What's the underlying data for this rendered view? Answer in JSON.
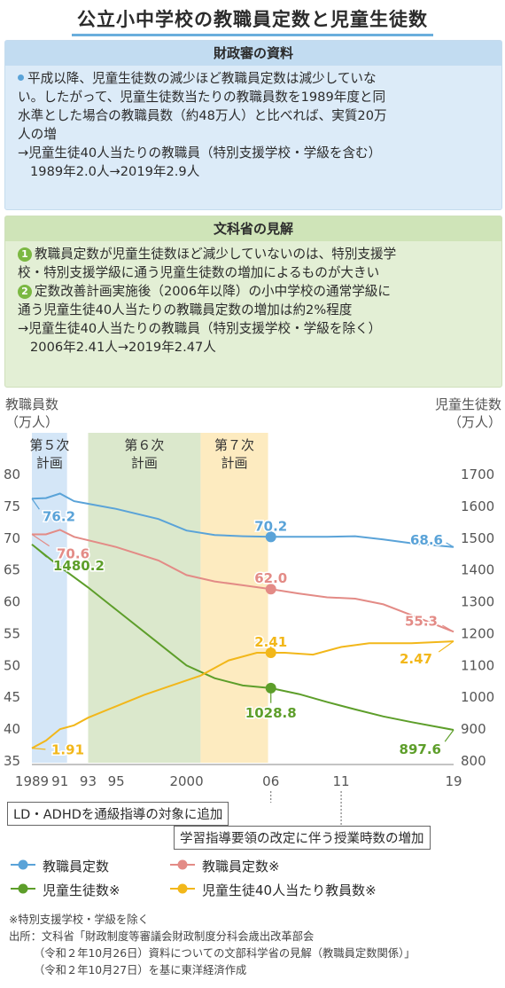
{
  "title": "公立小中学校の教職員定数と児童生徒数",
  "mof_box": {
    "heading": "財政審の資料",
    "line1": "平成以降、児童生徒数の減少ほど教職員定数は減少していな",
    "line2": "い。したがって、児童生徒数当たりの教職員数を1989年度と同",
    "line3": "水準とした場合の教職員数（約48万人）と比べれば、実質20万",
    "line4": "人の増",
    "arrow_line1": "→児童生徒40人当たりの教職員（特別支援学校・学級を含む）",
    "arrow_line2": "1989年2.0人→2019年2.9人"
  },
  "mext_box": {
    "heading": "文科省の見解",
    "item1_num": "1",
    "item1_line1": "教職員定数が児童生徒数ほど減少していないのは、特別支援学",
    "item1_line2": "校・特別支援学級に通う児童生徒数の増加によるものが大きい",
    "item2_num": "2",
    "item2_line1": "定数改善計画実施後（2006年以降）の小中学校の通常学級に",
    "item2_line2": "通う児童生徒40人当たりの教職員定数の増加は約2%程度",
    "arrow_line1": "→児童生徒40人当たりの教職員（特別支援学校・学級を除く）",
    "arrow_line2": "2006年2.41人→2019年2.47人"
  },
  "chart_data": {
    "type": "line",
    "left_axis_label_1": "教職員数",
    "left_axis_label_2": "（万人）",
    "right_axis_label_1": "児童生徒数",
    "right_axis_label_2": "（万人）",
    "x_ticks": [
      "1989",
      "91",
      "93",
      "95",
      "2000",
      "06",
      "11",
      "19"
    ],
    "x_tick_values": [
      1989,
      1991,
      1993,
      1995,
      2000,
      2006,
      2011,
      2019
    ],
    "xlim": [
      1989,
      2019
    ],
    "left_ylim": [
      35,
      80
    ],
    "left_ticks": [
      "80",
      "75",
      "70",
      "65",
      "60",
      "55",
      "50",
      "45",
      "40",
      "35"
    ],
    "right_ylim": [
      800,
      1700
    ],
    "right_ticks": [
      "1700",
      "1600",
      "1500",
      "1400",
      "1300",
      "1200",
      "1100",
      "1000",
      "900",
      "800"
    ],
    "periods": [
      {
        "label_1": "第５次",
        "label_2": "計画",
        "start": 1989,
        "end": 1991.5,
        "color": "#d4e6f7"
      },
      {
        "label_1": "第６次",
        "label_2": "計画",
        "start": 1993,
        "end": 2001,
        "color": "#dbe8cc"
      },
      {
        "label_1": "第７次",
        "label_2": "計画",
        "start": 2001,
        "end": 2005.8,
        "color": "#fdebc0"
      }
    ],
    "series": [
      {
        "name": "教職員定数",
        "axis": "left",
        "color": "#5aa3d8",
        "x": [
          1989,
          1990,
          1991,
          1992,
          1993,
          1995,
          1998,
          2000,
          2002,
          2004,
          2006,
          2008,
          2010,
          2012,
          2014,
          2016,
          2019
        ],
        "values": [
          76.2,
          76.3,
          77.0,
          75.8,
          75.4,
          74.6,
          73.0,
          71.2,
          70.5,
          70.3,
          70.2,
          70.2,
          70.2,
          70.3,
          69.8,
          69.2,
          68.6
        ]
      },
      {
        "name": "教職員定数※",
        "axis": "left",
        "color": "#e38b86",
        "x": [
          1989,
          1990,
          1991,
          1992,
          1995,
          1998,
          2000,
          2002,
          2004,
          2006,
          2008,
          2010,
          2012,
          2014,
          2016,
          2019
        ],
        "values": [
          70.6,
          70.6,
          71.3,
          70.2,
          68.6,
          66.5,
          64.2,
          63.2,
          62.6,
          62.0,
          61.3,
          60.7,
          60.5,
          59.6,
          57.9,
          55.3
        ]
      },
      {
        "name": "児童生徒数※",
        "axis": "right",
        "color": "#5d9e2a",
        "x": [
          1989,
          1991,
          1993,
          1995,
          1998,
          2000,
          2002,
          2004,
          2006,
          2008,
          2010,
          2012,
          2014,
          2016,
          2019
        ],
        "values": [
          1480.2,
          1410,
          1345,
          1275,
          1170,
          1100,
          1060,
          1037,
          1028.8,
          1010,
          985,
          962,
          940,
          922,
          897.6
        ]
      },
      {
        "name": "児童生徒40人当たり教員数※",
        "axis": "left",
        "color": "#f2b71a",
        "x": [
          1989,
          1990,
          1991,
          1992,
          1993,
          1995,
          1997,
          1999,
          2001,
          2003,
          2005,
          2006,
          2007,
          2009,
          2011,
          2013,
          2016,
          2019
        ],
        "values": [
          1.91,
          1.95,
          2.01,
          2.03,
          2.07,
          2.13,
          2.19,
          2.24,
          2.29,
          2.37,
          2.41,
          2.41,
          2.41,
          2.4,
          2.44,
          2.46,
          2.46,
          2.47
        ]
      }
    ],
    "ratio_axis_note": "児童生徒40人当たり教員数 plotted on its own scale: 1.91 at 37 (left axis), 2.47 at 53.8",
    "labels": [
      {
        "text": "76.2",
        "series": 0,
        "x": 1989
      },
      {
        "text": "70.2",
        "series": 0,
        "x": 2006
      },
      {
        "text": "68.6",
        "series": 0,
        "x": 2019
      },
      {
        "text": "70.6",
        "series": 1,
        "x": 1989
      },
      {
        "text": "62.0",
        "series": 1,
        "x": 2006
      },
      {
        "text": "55.3",
        "series": 1,
        "x": 2019
      },
      {
        "text": "1480.2",
        "series": 2,
        "x": 1989
      },
      {
        "text": "1028.8",
        "series": 2,
        "x": 2006
      },
      {
        "text": "897.6",
        "series": 2,
        "x": 2019
      },
      {
        "text": "1.91",
        "series": 3,
        "x": 1989
      },
      {
        "text": "2.41",
        "series": 3,
        "x": 2006
      },
      {
        "text": "2.47",
        "series": 3,
        "x": 2019
      }
    ]
  },
  "annotations": {
    "ld_adhd": "LD・ADHDを通級指導の対象に追加",
    "curriculum": "学習指導要領の改定に伴う授業時数の増加"
  },
  "legend": {
    "item1": "教職員定数",
    "item2": "教職員定数※",
    "item3": "児童生徒数※",
    "item4": "児童生徒40人当たり教員数※"
  },
  "footnote": {
    "note": "※特別支援学校・学級を除く",
    "source1": "出所：文科省「財政制度等審議会財政制度分科会歳出改革部会",
    "source2": "（令和２年10月26日）資料についての文部科学省の見解（教職員定数関係）」",
    "source3": "（令和２年10月27日）を基に東洋経済作成"
  }
}
